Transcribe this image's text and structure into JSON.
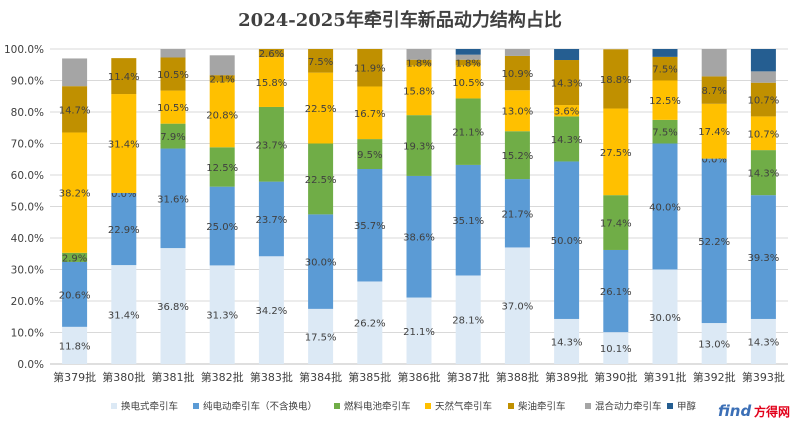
{
  "chart_data": {
    "type": "bar",
    "stacked": true,
    "title": "2024-2025年牵引车新品动力结构占比",
    "ylim": [
      0,
      100
    ],
    "yticks": [
      "0.0%",
      "10.0%",
      "20.0%",
      "30.0%",
      "40.0%",
      "50.0%",
      "60.0%",
      "70.0%",
      "80.0%",
      "90.0%",
      "100.0%"
    ],
    "categories": [
      "第379批",
      "第380批",
      "第381批",
      "第382批",
      "第383批",
      "第384批",
      "第385批",
      "第386批",
      "第387批",
      "第388批",
      "第389批",
      "第390批",
      "第391批",
      "第392批",
      "第393批"
    ],
    "series": [
      {
        "name": "换电式牵引车",
        "color": "#dce9f5",
        "values": [
          11.8,
          31.4,
          36.8,
          31.3,
          34.2,
          17.5,
          26.2,
          21.1,
          28.1,
          37.0,
          14.3,
          10.1,
          30.0,
          13.0,
          14.3
        ],
        "labels": [
          "11.8%",
          "31.4%",
          "36.8%",
          "31.3%",
          "34.2%",
          "17.5%",
          "26.2%",
          "21.1%",
          "28.1%",
          "37.0%",
          "14.3%",
          "10.1%",
          "30.0%",
          "13.0%",
          "14.3%"
        ]
      },
      {
        "name": "纯电动牵引车（不含换电）",
        "color": "#5b9bd5",
        "values": [
          20.6,
          22.9,
          31.6,
          25.0,
          23.7,
          30.0,
          35.7,
          38.6,
          35.1,
          21.7,
          50.0,
          26.1,
          40.0,
          52.2,
          39.3
        ],
        "labels": [
          "20.6%",
          "22.9%",
          "31.6%",
          "25.0%",
          "23.7%",
          "30.0%",
          "35.7%",
          "38.6%",
          "35.1%",
          "21.7%",
          "50.0%",
          "26.1%",
          "40.0%",
          "52.2%",
          "39.3%"
        ]
      },
      {
        "name": "燃料电池牵引车",
        "color": "#70ad47",
        "values": [
          2.9,
          0.0,
          7.9,
          12.5,
          23.7,
          22.5,
          9.5,
          19.3,
          21.1,
          15.2,
          14.3,
          17.4,
          7.5,
          0.0,
          14.3
        ],
        "labels": [
          "2.9%",
          "0.0%",
          "7.9%",
          "12.5%",
          "23.7%",
          "22.5%",
          "9.5%",
          "19.3%",
          "21.1%",
          "15.2%",
          "14.3%",
          "17.4%",
          "7.5%",
          "0.0%",
          "14.3%"
        ]
      },
      {
        "name": "天然气牵引车",
        "color": "#ffc000",
        "values": [
          38.2,
          31.4,
          10.5,
          20.8,
          15.8,
          22.5,
          16.7,
          15.8,
          10.5,
          13.0,
          3.6,
          27.5,
          12.5,
          17.4,
          10.7
        ],
        "labels": [
          "38.2%",
          "31.4%",
          "10.5%",
          "20.8%",
          "15.8%",
          "22.5%",
          "16.7%",
          "15.8%",
          "10.5%",
          "13.0%",
          "3.6%",
          "27.5%",
          "12.5%",
          "17.4%",
          "10.7%"
        ]
      },
      {
        "name": "柴油牵引车",
        "color": "#c09000",
        "values": [
          14.7,
          11.4,
          10.5,
          2.1,
          2.6,
          7.5,
          11.9,
          1.8,
          1.8,
          10.9,
          14.3,
          18.8,
          7.5,
          8.7,
          10.7
        ],
        "labels": [
          "14.7%",
          "11.4%",
          "10.5%",
          "2.1%",
          "2.6%",
          "7.5%",
          "11.9%",
          "1.8%",
          "1.8%",
          "10.9%",
          "14.3%",
          "18.8%",
          "7.5%",
          "8.7%",
          "10.7%"
        ]
      },
      {
        "name": "混合动力牵引车",
        "color": "#a5a5a5",
        "values": [
          8.8,
          0,
          2.7,
          6.3,
          0,
          0,
          0,
          3.4,
          1.6,
          2.2,
          0,
          0,
          0,
          8.7,
          3.6
        ],
        "labels": null
      },
      {
        "name": "甲醇",
        "color": "#255e91",
        "values": [
          0,
          0,
          0,
          0,
          0,
          0,
          0,
          0,
          1.8,
          0,
          3.5,
          0,
          2.5,
          0,
          7.1
        ],
        "labels": null
      }
    ]
  },
  "watermark": {
    "logo_text": "find",
    "site_name": "方得网"
  }
}
